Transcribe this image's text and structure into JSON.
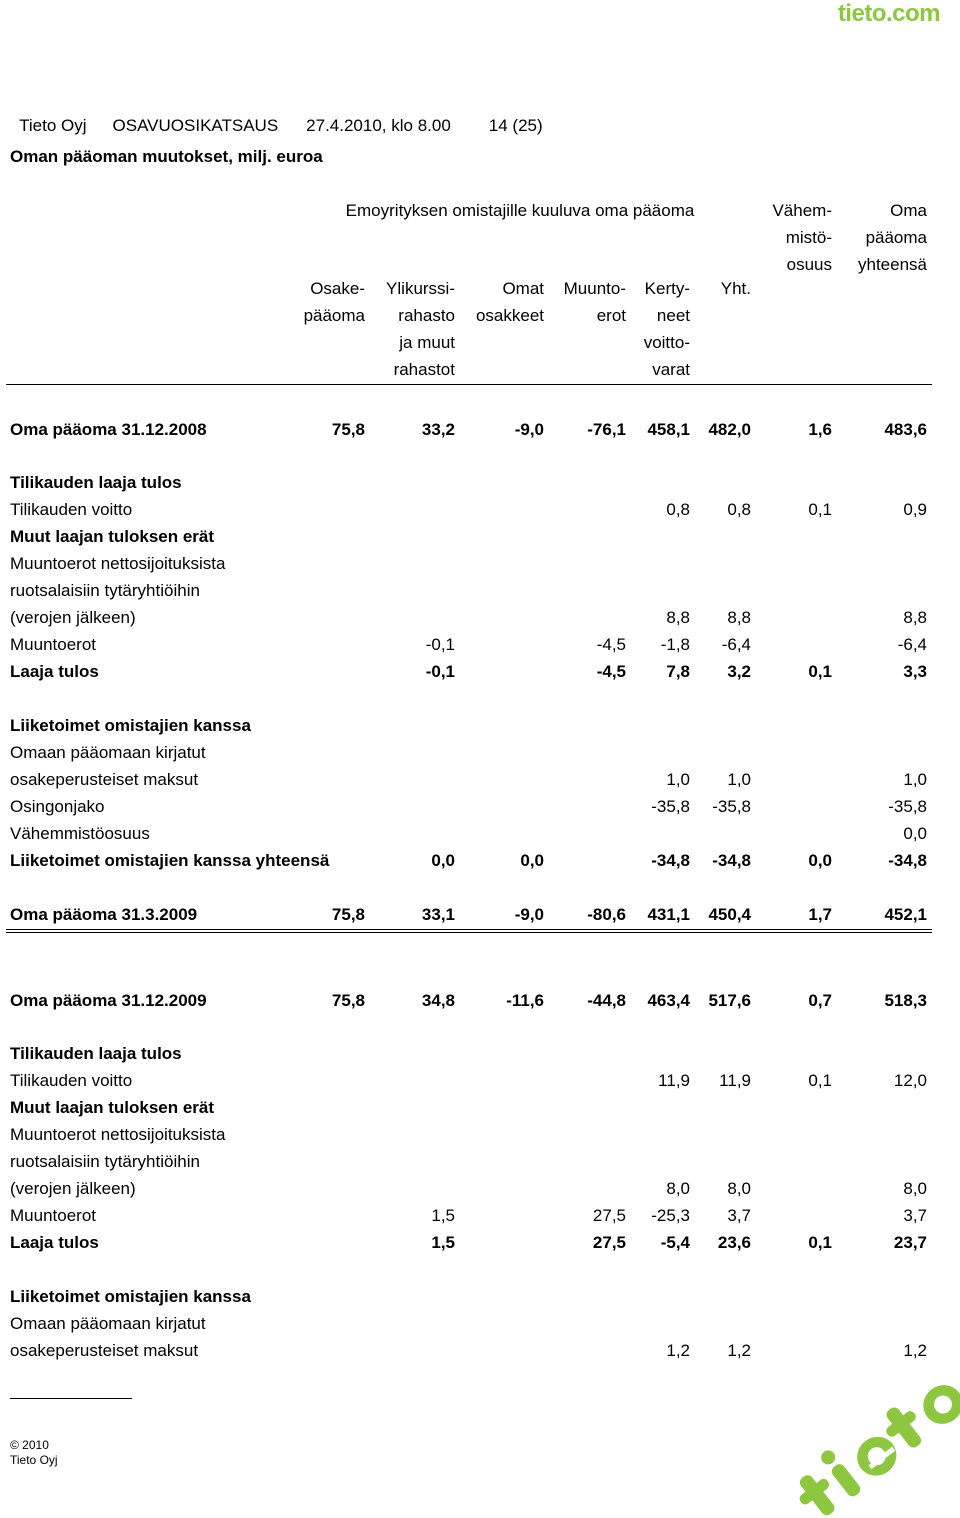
{
  "logo": "tieto.com",
  "header": {
    "company": "Tieto Oyj",
    "report": "OSAVUOSIKATSAUS",
    "date": "27.4.2010, klo 8.00",
    "page": "14 (25)"
  },
  "title": "Oman pääoman muutokset, milj. euroa",
  "group_header": "Emoyrityksen omistajille kuuluva oma pääoma",
  "col_headers": [
    [
      "Osake-",
      "pääoma"
    ],
    [
      "Ylikurssi-",
      "rahasto",
      "ja muut",
      "rahastot"
    ],
    [
      "Omat",
      "osakkeet"
    ],
    [
      "Muunto-",
      "erot"
    ],
    [
      "Kerty-",
      "neet",
      "voitto-",
      "varat"
    ],
    [
      "Yht."
    ],
    [
      "Vähem-",
      "mistö-",
      "osuus"
    ],
    [
      "Oma",
      "pääoma",
      "yhteensä"
    ]
  ],
  "rows": [
    {
      "label": "Oma pääoma 31.12.2008",
      "bold": true,
      "values": [
        "75,8",
        "33,2",
        "-9,0",
        "-76,1",
        "458,1",
        "482,0",
        "1,6",
        "483,6"
      ]
    },
    {
      "label": "Tilikauden laaja tulos",
      "bold": true,
      "values": []
    },
    {
      "label": "Tilikauden voitto",
      "bold": false,
      "values": [
        "",
        "",
        "",
        "",
        "0,8",
        "0,8",
        "0,1",
        "0,9"
      ]
    },
    {
      "label": "Muut laajan tuloksen erät",
      "bold": true,
      "values": []
    },
    {
      "label": "Muuntoerot nettosijoituksista",
      "bold": false,
      "values": []
    },
    {
      "label": "ruotsalaisiin tytäryhtiöihin",
      "bold": false,
      "values": []
    },
    {
      "label": "(verojen jälkeen)",
      "bold": false,
      "values": [
        "",
        "",
        "",
        "",
        "8,8",
        "8,8",
        "",
        "8,8"
      ]
    },
    {
      "label": "Muuntoerot",
      "bold": false,
      "values": [
        "",
        "-0,1",
        "",
        "-4,5",
        "-1,8",
        "-6,4",
        "",
        "-6,4"
      ]
    },
    {
      "label": "Laaja tulos",
      "bold": true,
      "values": [
        "",
        "-0,1",
        "",
        "-4,5",
        "7,8",
        "3,2",
        "0,1",
        "3,3"
      ]
    },
    {
      "label": "Liiketoimet omistajien kanssa",
      "bold": true,
      "values": []
    },
    {
      "label": "Omaan pääomaan kirjatut",
      "bold": false,
      "values": []
    },
    {
      "label": "osakeperusteiset maksut",
      "bold": false,
      "values": [
        "",
        "",
        "",
        "",
        "1,0",
        "1,0",
        "",
        "1,0"
      ]
    },
    {
      "label": "Osingonjako",
      "bold": false,
      "values": [
        "",
        "",
        "",
        "",
        "-35,8",
        "-35,8",
        "",
        "-35,8"
      ]
    },
    {
      "label": "Vähemmistöosuus",
      "bold": false,
      "values": [
        "",
        "",
        "",
        "",
        "",
        "",
        "",
        "0,0"
      ]
    },
    {
      "label": "Liiketoimet omistajien kanssa yhteensä",
      "bold": true,
      "values": [
        "",
        "0,0",
        "0,0",
        "",
        "-34,8",
        "-34,8",
        "0,0",
        "-34,8"
      ]
    },
    {
      "label": "Oma pääoma 31.3.2009",
      "bold": true,
      "values": [
        "75,8",
        "33,1",
        "-9,0",
        "-80,6",
        "431,1",
        "450,4",
        "1,7",
        "452,1"
      ]
    },
    {
      "label": "Oma pääoma 31.12.2009",
      "bold": true,
      "values": [
        "75,8",
        "34,8",
        "-11,6",
        "-44,8",
        "463,4",
        "517,6",
        "0,7",
        "518,3"
      ]
    },
    {
      "label": "Tilikauden laaja tulos",
      "bold": true,
      "values": []
    },
    {
      "label": "Tilikauden voitto",
      "bold": false,
      "values": [
        "",
        "",
        "",
        "",
        "11,9",
        "11,9",
        "0,1",
        "12,0"
      ]
    },
    {
      "label": "Muut laajan tuloksen erät",
      "bold": true,
      "values": []
    },
    {
      "label": "Muuntoerot nettosijoituksista",
      "bold": false,
      "values": []
    },
    {
      "label": "ruotsalaisiin tytäryhtiöihin",
      "bold": false,
      "values": []
    },
    {
      "label": "(verojen jälkeen)",
      "bold": false,
      "values": [
        "",
        "",
        "",
        "",
        "8,0",
        "8,0",
        "",
        "8,0"
      ]
    },
    {
      "label": "Muuntoerot",
      "bold": false,
      "values": [
        "",
        "1,5",
        "",
        "27,5",
        "-25,3",
        "3,7",
        "",
        "3,7"
      ]
    },
    {
      "label": "Laaja tulos",
      "bold": true,
      "values": [
        "",
        "1,5",
        "",
        "27,5",
        "-5,4",
        "23,6",
        "0,1",
        "23,7"
      ]
    },
    {
      "label": "Liiketoimet omistajien kanssa",
      "bold": true,
      "values": []
    },
    {
      "label": "Omaan pääomaan kirjatut",
      "bold": false,
      "values": []
    },
    {
      "label": "osakeperusteiset maksut",
      "bold": false,
      "values": [
        "",
        "",
        "",
        "",
        "1,2",
        "1,2",
        "",
        "1,2"
      ]
    }
  ],
  "footer": {
    "copyright": "© 2010",
    "company": "Tieto Oyj"
  },
  "colors": {
    "brand_green": "#8dc63f"
  }
}
